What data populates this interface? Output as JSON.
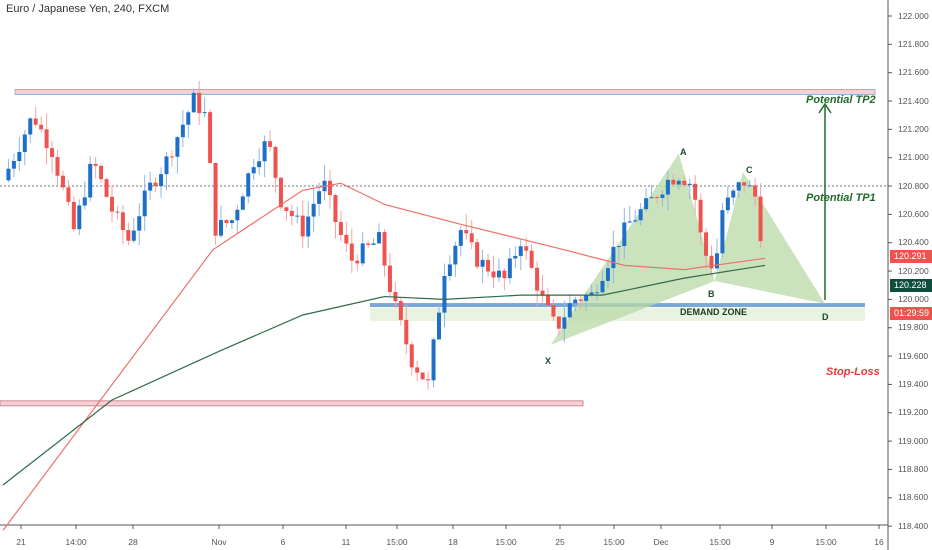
{
  "header": {
    "title": "Euro / Japanese Yen, 240, FXCM"
  },
  "colors": {
    "up": "#1e6fc8",
    "down": "#ef5350",
    "ma_fast": "#f0706a",
    "ma_slow": "#2e6b4a",
    "pattern": "#b9d9a6",
    "tp": "#1f6b2a",
    "stop": "#e53935",
    "zone": "#7ba7d6"
  },
  "chart_data": {
    "type": "candlestick",
    "title": "Euro / Japanese Yen, 240, FXCM",
    "ylim": [
      118.4,
      122.0
    ],
    "y_ticks": [
      "122.000",
      "121.800",
      "121.600",
      "121.400",
      "121.200",
      "121.000",
      "120.800",
      "120.600",
      "120.400",
      "120.200",
      "120.000",
      "119.800",
      "119.600",
      "119.400",
      "119.200",
      "119.000",
      "118.800",
      "118.600",
      "118.400"
    ],
    "x_ticks": [
      "21",
      "14:00",
      "28",
      "Nov",
      "6",
      "11",
      "15:00",
      "18",
      "15:00",
      "25",
      "15:00",
      "Dec",
      "15:00",
      "9",
      "15:00",
      "16"
    ],
    "bars": 140,
    "close_path": [
      [
        0,
        120.84
      ],
      [
        5.5,
        121.3
      ],
      [
        9,
        121.05
      ],
      [
        13,
        120.49
      ],
      [
        16.5,
        120.98
      ],
      [
        20,
        120.63
      ],
      [
        23,
        120.42
      ],
      [
        26.6,
        120.77
      ],
      [
        30,
        120.98
      ],
      [
        35,
        121.41
      ],
      [
        37.6,
        121.27
      ],
      [
        38.5,
        120.49
      ],
      [
        42,
        120.56
      ],
      [
        46,
        120.98
      ],
      [
        48.6,
        121.12
      ],
      [
        51,
        120.7
      ],
      [
        55,
        120.49
      ],
      [
        58.7,
        120.84
      ],
      [
        61.5,
        120.49
      ],
      [
        64,
        120.28
      ],
      [
        69,
        120.42
      ],
      [
        71.5,
        120.0
      ],
      [
        75,
        119.57
      ],
      [
        78,
        119.4
      ],
      [
        81,
        120.21
      ],
      [
        84,
        120.49
      ],
      [
        87,
        120.28
      ],
      [
        92,
        120.14
      ],
      [
        95,
        120.42
      ],
      [
        99,
        120.0
      ],
      [
        101.5,
        119.79
      ],
      [
        104.6,
        120.0
      ],
      [
        108,
        120.03
      ],
      [
        112,
        120.35
      ],
      [
        114.7,
        120.53
      ],
      [
        119,
        120.7
      ],
      [
        122,
        120.84
      ],
      [
        124,
        120.88
      ],
      [
        126.6,
        120.81
      ],
      [
        128.4,
        120.35
      ],
      [
        130.6,
        120.21
      ],
      [
        132,
        120.63
      ],
      [
        135.8,
        120.84
      ],
      [
        138.5,
        120.7
      ],
      [
        139.8,
        120.1
      ]
    ],
    "ma_fast": [
      [
        0,
        118.37
      ],
      [
        38.5,
        120.35
      ],
      [
        55,
        120.77
      ],
      [
        62,
        120.82
      ],
      [
        70,
        120.67
      ],
      [
        84,
        120.53
      ],
      [
        103,
        120.35
      ],
      [
        114,
        120.24
      ],
      [
        125,
        120.21
      ],
      [
        139.8,
        120.29
      ]
    ],
    "ma_slow": [
      [
        0,
        118.69
      ],
      [
        20,
        119.29
      ],
      [
        40,
        119.64
      ],
      [
        55,
        119.89
      ],
      [
        70,
        120.02
      ],
      [
        81,
        120.0
      ],
      [
        95,
        120.03
      ],
      [
        110,
        120.03
      ],
      [
        125,
        120.15
      ],
      [
        139.8,
        120.24
      ]
    ],
    "levels": {
      "resistance": 121.46,
      "support": 119.27,
      "tp1": 120.8,
      "demand_top": 119.96,
      "demand_bottom": 119.86
    },
    "pattern": {
      "points": [
        {
          "label": "X",
          "bar": 100.5,
          "price": 119.68
        },
        {
          "label": "A",
          "bar": 124,
          "price": 121.03
        },
        {
          "label": "B",
          "bar": 130.6,
          "price": 120.13
        },
        {
          "label": "C",
          "bar": 135.8,
          "price": 120.9
        },
        {
          "label": "D",
          "bar": 150.8,
          "price": 119.97
        }
      ]
    },
    "annotations": {
      "tp2": "Potential TP2",
      "tp1": "Potential TP1",
      "stop": "Stop-Loss",
      "zone": "DEMAND ZONE"
    },
    "badges": [
      {
        "text": "120.291",
        "color": "#ef5350"
      },
      {
        "text": "120.228",
        "color": "#0f4d3c"
      },
      {
        "text": "01:29:59",
        "color": "#ef5350"
      }
    ]
  }
}
